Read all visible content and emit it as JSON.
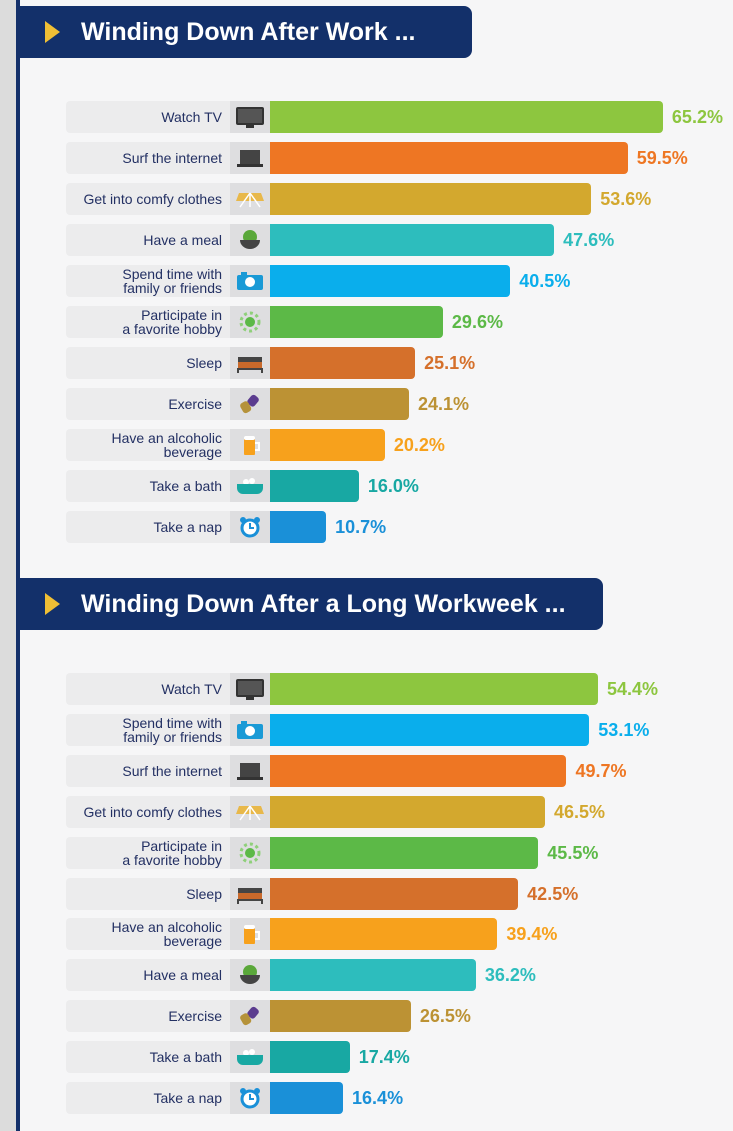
{
  "chart_data": [
    {
      "type": "bar",
      "orientation": "horizontal",
      "title": "Winding Down After Work ...",
      "categories": [
        "Watch TV",
        "Surf the internet",
        "Get into comfy clothes",
        "Have a meal",
        "Spend time with family or friends",
        "Participate in a favorite hobby",
        "Sleep",
        "Exercise",
        "Have an alcoholic beverage",
        "Take a bath",
        "Take a nap"
      ],
      "labels": [
        [
          "Watch TV"
        ],
        [
          "Surf the internet"
        ],
        [
          "Get into comfy clothes"
        ],
        [
          "Have a meal"
        ],
        [
          "Spend time with",
          "family or friends"
        ],
        [
          "Participate in",
          "a favorite hobby"
        ],
        [
          "Sleep"
        ],
        [
          "Exercise"
        ],
        [
          "Have an alcoholic",
          "beverage"
        ],
        [
          "Take a bath"
        ],
        [
          "Take a nap"
        ]
      ],
      "icons": [
        "tv-icon",
        "laptop-icon",
        "clothes-icon",
        "meal-icon",
        "camera-icon",
        "hobby-icon",
        "bed-icon",
        "dumbbell-icon",
        "beer-icon",
        "bathtub-icon",
        "alarm-clock-icon"
      ],
      "values": [
        65.2,
        59.5,
        53.6,
        47.6,
        40.5,
        29.6,
        25.1,
        24.1,
        20.2,
        16.0,
        10.7
      ],
      "value_labels": [
        "65.2%",
        "59.5%",
        "53.6%",
        "47.6%",
        "40.5%",
        "29.6%",
        "25.1%",
        "24.1%",
        "20.2%",
        "16.0%",
        "10.7%"
      ],
      "colors": [
        "#8dc63f",
        "#ee7623",
        "#d3a82e",
        "#2dbdbd",
        "#0aaeec",
        "#5cb947",
        "#d5702b",
        "#bc9234",
        "#f7a11c",
        "#18a8a3",
        "#1a90d8"
      ]
    },
    {
      "type": "bar",
      "orientation": "horizontal",
      "title": "Winding Down After a Long Workweek ...",
      "categories": [
        "Watch TV",
        "Spend time with family or friends",
        "Surf the internet",
        "Get into comfy clothes",
        "Participate in a favorite hobby",
        "Sleep",
        "Have an alcoholic beverage",
        "Have a meal",
        "Exercise",
        "Take a bath",
        "Take a nap"
      ],
      "labels": [
        [
          "Watch TV"
        ],
        [
          "Spend time with",
          "family or friends"
        ],
        [
          "Surf the internet"
        ],
        [
          "Get into comfy clothes"
        ],
        [
          "Participate in",
          "a favorite hobby"
        ],
        [
          "Sleep"
        ],
        [
          "Have an alcoholic",
          "beverage"
        ],
        [
          "Have a meal"
        ],
        [
          "Exercise"
        ],
        [
          "Take a bath"
        ],
        [
          "Take a nap"
        ]
      ],
      "icons": [
        "tv-icon",
        "camera-icon",
        "laptop-icon",
        "clothes-icon",
        "hobby-icon",
        "bed-icon",
        "beer-icon",
        "meal-icon",
        "dumbbell-icon",
        "bathtub-icon",
        "alarm-clock-icon"
      ],
      "values": [
        54.4,
        53.1,
        49.7,
        46.5,
        45.5,
        42.5,
        39.4,
        36.2,
        26.5,
        17.4,
        16.4
      ],
      "value_labels": [
        "54.4%",
        "53.1%",
        "49.7%",
        "46.5%",
        "45.5%",
        "42.5%",
        "39.4%",
        "36.2%",
        "26.5%",
        "17.4%",
        "16.4%"
      ],
      "colors": [
        "#8dc63f",
        "#0aaeec",
        "#ee7623",
        "#d3a82e",
        "#5cb947",
        "#d5702b",
        "#f7a11c",
        "#2dbdbd",
        "#bc9234",
        "#18a8a3",
        "#1a90d8"
      ]
    }
  ],
  "header_color": "#13306a",
  "accent_color": "#f0bf35"
}
